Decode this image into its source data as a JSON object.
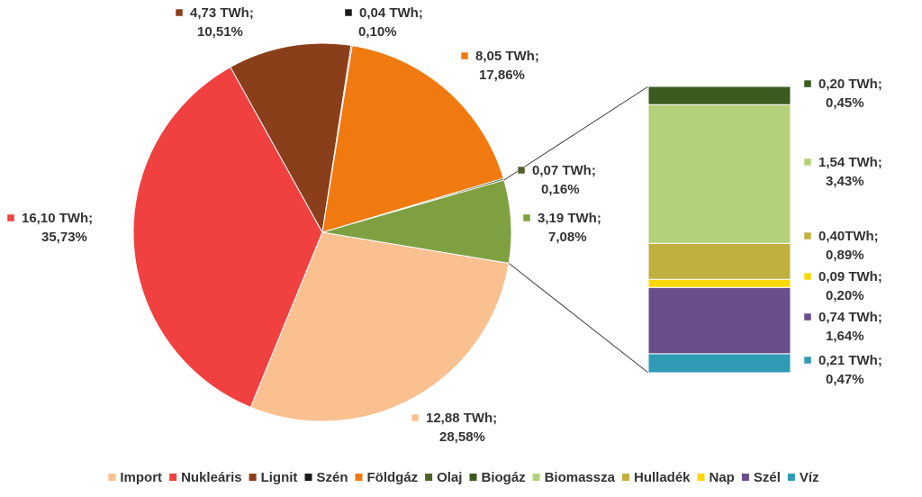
{
  "chart_data": {
    "type": "pie",
    "title": "",
    "legend_position": "bottom",
    "series": [
      {
        "key": "import",
        "name": "Import",
        "twh": "12,88 TWh;",
        "pct": "28,58%",
        "value": 28.58,
        "color": "#FAC090"
      },
      {
        "key": "nuklearis",
        "name": "Nukleáris",
        "twh": "16,10 TWh;",
        "pct": "35,73%",
        "value": 35.73,
        "color": "#F04040"
      },
      {
        "key": "lignit",
        "name": "Lignit",
        "twh": "4,73 TWh;",
        "pct": "10,51%",
        "value": 10.51,
        "color": "#8B3E1A"
      },
      {
        "key": "szen",
        "name": "Szén",
        "twh": "0,04 TWh;",
        "pct": "0,10%",
        "value": 0.1,
        "color": "#1A1A1A"
      },
      {
        "key": "foldgaz",
        "name": "Földgáz",
        "twh": "8,05 TWh;",
        "pct": "17,86%",
        "value": 17.86,
        "color": "#F07A10"
      },
      {
        "key": "olaj",
        "name": "Olaj",
        "twh": "0,07 TWh;",
        "pct": "0,16%",
        "value": 0.16,
        "color": "#4F6228"
      },
      {
        "key": "biogaz",
        "name": "Biogáz",
        "twh": "0,20 TWh;",
        "pct": "0,45%",
        "value": 0.45,
        "color": "#3B5A1E",
        "group": "renewable"
      },
      {
        "key": "biomassza",
        "name": "Biomassza",
        "twh": "1,54 TWh;",
        "pct": "3,43%",
        "value": 3.43,
        "color": "#B3D17A",
        "group": "renewable"
      },
      {
        "key": "hulladek",
        "name": "Hulladék",
        "twh": "0,40TWh;",
        "pct": "0,89%",
        "value": 0.89,
        "color": "#C0B040",
        "group": "renewable"
      },
      {
        "key": "nap",
        "name": "Nap",
        "twh": "0,09 TWh;",
        "pct": "0,20%",
        "value": 0.2,
        "color": "#FFD700",
        "group": "renewable"
      },
      {
        "key": "szel",
        "name": "Szél",
        "twh": "0,74 TWh;",
        "pct": "1,64%",
        "value": 1.64,
        "color": "#6A4E8C",
        "group": "renewable"
      },
      {
        "key": "viz",
        "name": "Víz",
        "twh": "0,21 TWh;",
        "pct": "0,47%",
        "value": 0.47,
        "color": "#2F9BB5",
        "group": "renewable"
      }
    ],
    "renewable_total": {
      "twh": "3,19 TWh;",
      "pct": "7,08%",
      "value": 7.08,
      "color": "#7FA040"
    },
    "legend": [
      "Import",
      "Nukleáris",
      "Lignit",
      "Szén",
      "Földgáz",
      "Olaj",
      "Biogáz",
      "Biomassza",
      "Hulladék",
      "Nap",
      "Szél",
      "Víz"
    ]
  }
}
